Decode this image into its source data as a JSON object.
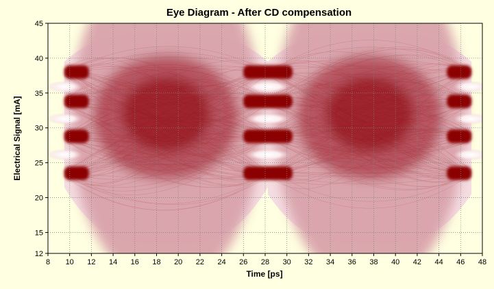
{
  "chart_data": {
    "type": "eye-diagram",
    "title": "Eye Diagram - After CD compensation",
    "xlabel": "Time [ps]",
    "ylabel": "Electrical Signal [mA]",
    "xlim": [
      8,
      48
    ],
    "ylim": [
      12,
      45
    ],
    "x_ticks": [
      8,
      10,
      12,
      14,
      16,
      18,
      20,
      22,
      24,
      26,
      28,
      30,
      32,
      34,
      36,
      38,
      40,
      42,
      44,
      46,
      48
    ],
    "y_ticks": [
      12,
      15,
      20,
      25,
      30,
      35,
      40,
      45
    ],
    "grid": true,
    "trace_x_range": [
      9.5,
      47
    ],
    "symbol_period_ps": 18.75,
    "sampling_instants_ps": [
      9.5,
      28.25,
      47
    ],
    "signal_levels_mA": [
      23.5,
      28.8,
      33.8,
      38.0
    ],
    "envelope_max_mA": 43.5,
    "envelope_min_mA": 13.5,
    "crossing_upper_mA": 39.5,
    "crossing_lower_mA": 20.5,
    "colors": {
      "trace": "#8b0000",
      "background": "#ffffe1",
      "plot_background": "#f7e3e6",
      "grid": "#808080"
    }
  }
}
